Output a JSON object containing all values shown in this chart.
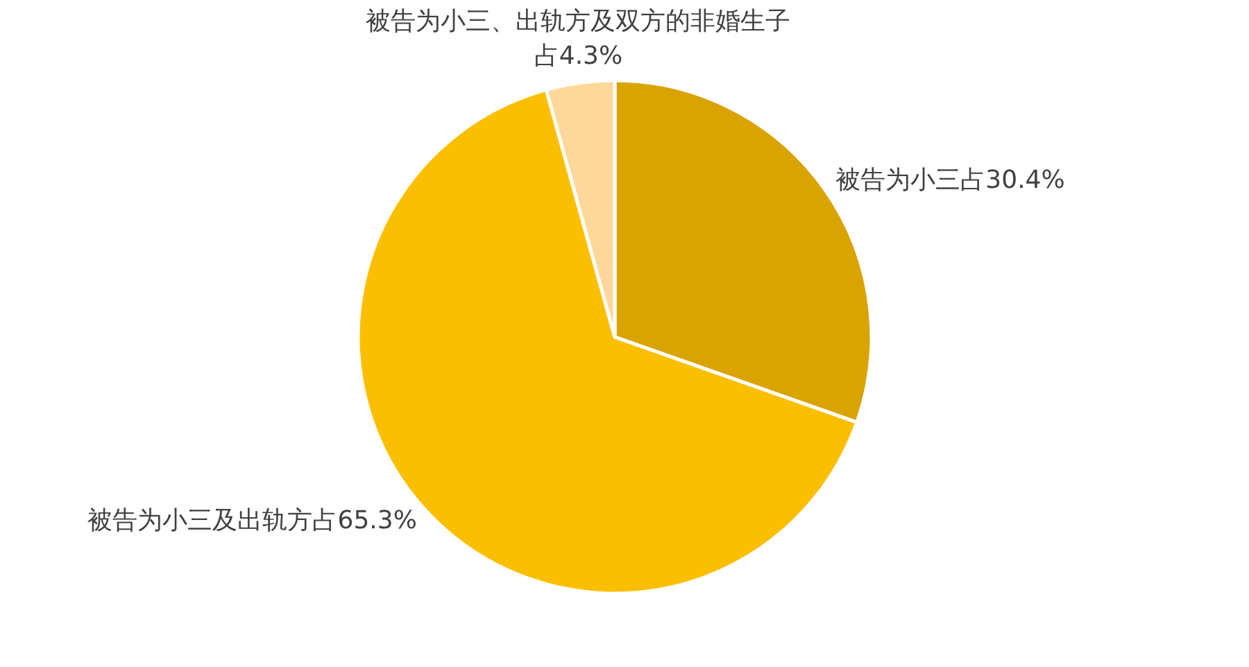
{
  "chart_data": {
    "type": "pie",
    "categories": [
      "被告为小三占30.4%",
      "被告为小三及出轨方占65.3%",
      "被告为小三、出轨方及双方的非婚生子占4.3%"
    ],
    "values": [
      30.4,
      65.3,
      4.3
    ],
    "colors": [
      "#d9a300",
      "#fcbf00",
      "#fdd89a"
    ]
  }
}
